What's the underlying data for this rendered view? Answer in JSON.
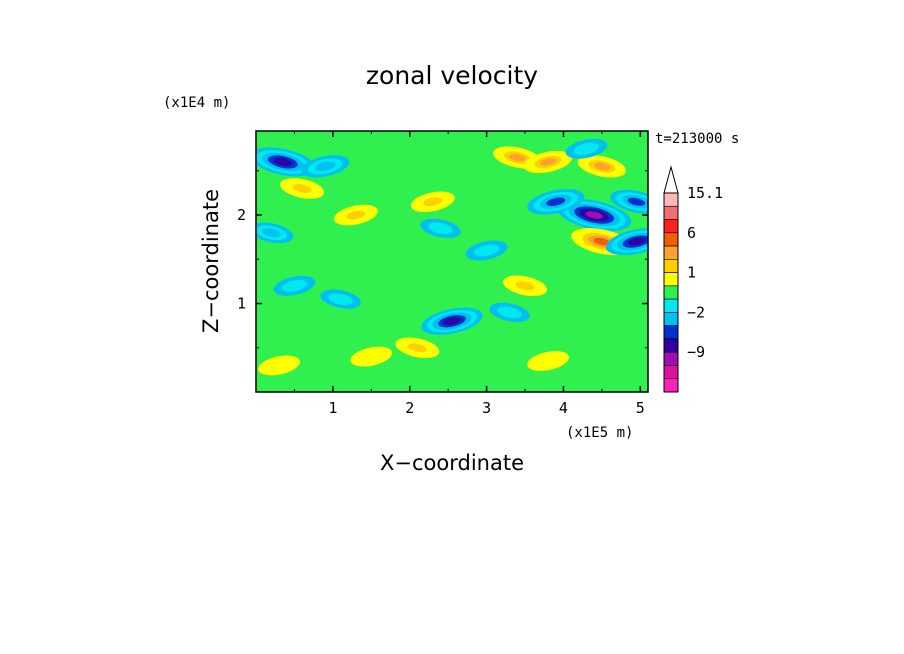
{
  "chart_data": {
    "type": "heatmap",
    "title": "zonal velocity",
    "xlabel": "X−coordinate",
    "ylabel": "Z−coordinate",
    "x_multiplier": "(x1E5 m)",
    "y_multiplier": "(x1E4 m)",
    "time_label": "t=213000 s",
    "x_ticks": [
      "1",
      "2",
      "3",
      "4",
      "5"
    ],
    "y_ticks": [
      "1",
      "2"
    ],
    "xlim": [
      0,
      5.1
    ],
    "ylim": [
      0,
      2.95
    ],
    "colorbar": {
      "labels": [
        "15.1",
        "6",
        "1",
        "−2",
        "−9"
      ],
      "levels": [
        15.1,
        12,
        9,
        6,
        3,
        2,
        1,
        0,
        -1,
        -2,
        -4,
        -6,
        -9,
        -12
      ],
      "colors": [
        "#ffb8b8",
        "#f07070",
        "#ff2020",
        "#f06000",
        "#ffa030",
        "#ffd000",
        "#ffff00",
        "#30f050",
        "#00e8f0",
        "#00c0f0",
        "#0030d0",
        "#3000a0",
        "#a010b0",
        "#e010a0",
        "#ff20c0"
      ]
    },
    "features": [
      {
        "x": 0.35,
        "z": 2.6,
        "value": -7
      },
      {
        "x": 0.9,
        "z": 2.55,
        "value": -3
      },
      {
        "x": 0.6,
        "z": 2.3,
        "value": 2
      },
      {
        "x": 1.3,
        "z": 2.0,
        "value": 2
      },
      {
        "x": 0.2,
        "z": 1.8,
        "value": -2
      },
      {
        "x": 0.5,
        "z": 1.2,
        "value": -1.5
      },
      {
        "x": 1.1,
        "z": 1.05,
        "value": -1.2
      },
      {
        "x": 2.3,
        "z": 2.15,
        "value": 2
      },
      {
        "x": 2.4,
        "z": 1.85,
        "value": -1.2
      },
      {
        "x": 2.55,
        "z": 0.8,
        "value": -6
      },
      {
        "x": 2.1,
        "z": 0.5,
        "value": 2
      },
      {
        "x": 1.5,
        "z": 0.4,
        "value": 1.5
      },
      {
        "x": 3.4,
        "z": 2.65,
        "value": 3
      },
      {
        "x": 3.8,
        "z": 2.6,
        "value": 3
      },
      {
        "x": 4.5,
        "z": 2.55,
        "value": 3
      },
      {
        "x": 4.3,
        "z": 2.75,
        "value": -1.5
      },
      {
        "x": 4.4,
        "z": 2.0,
        "value": -9
      },
      {
        "x": 3.9,
        "z": 2.15,
        "value": -5
      },
      {
        "x": 4.5,
        "z": 1.7,
        "value": 6
      },
      {
        "x": 4.95,
        "z": 1.7,
        "value": -6
      },
      {
        "x": 4.95,
        "z": 2.15,
        "value": -4
      },
      {
        "x": 3.0,
        "z": 1.6,
        "value": -1.5
      },
      {
        "x": 3.5,
        "z": 1.2,
        "value": 2
      },
      {
        "x": 3.8,
        "z": 0.35,
        "value": 1.5
      },
      {
        "x": 3.3,
        "z": 0.9,
        "value": -1.2
      },
      {
        "x": 0.3,
        "z": 0.3,
        "value": 1.5
      }
    ]
  }
}
